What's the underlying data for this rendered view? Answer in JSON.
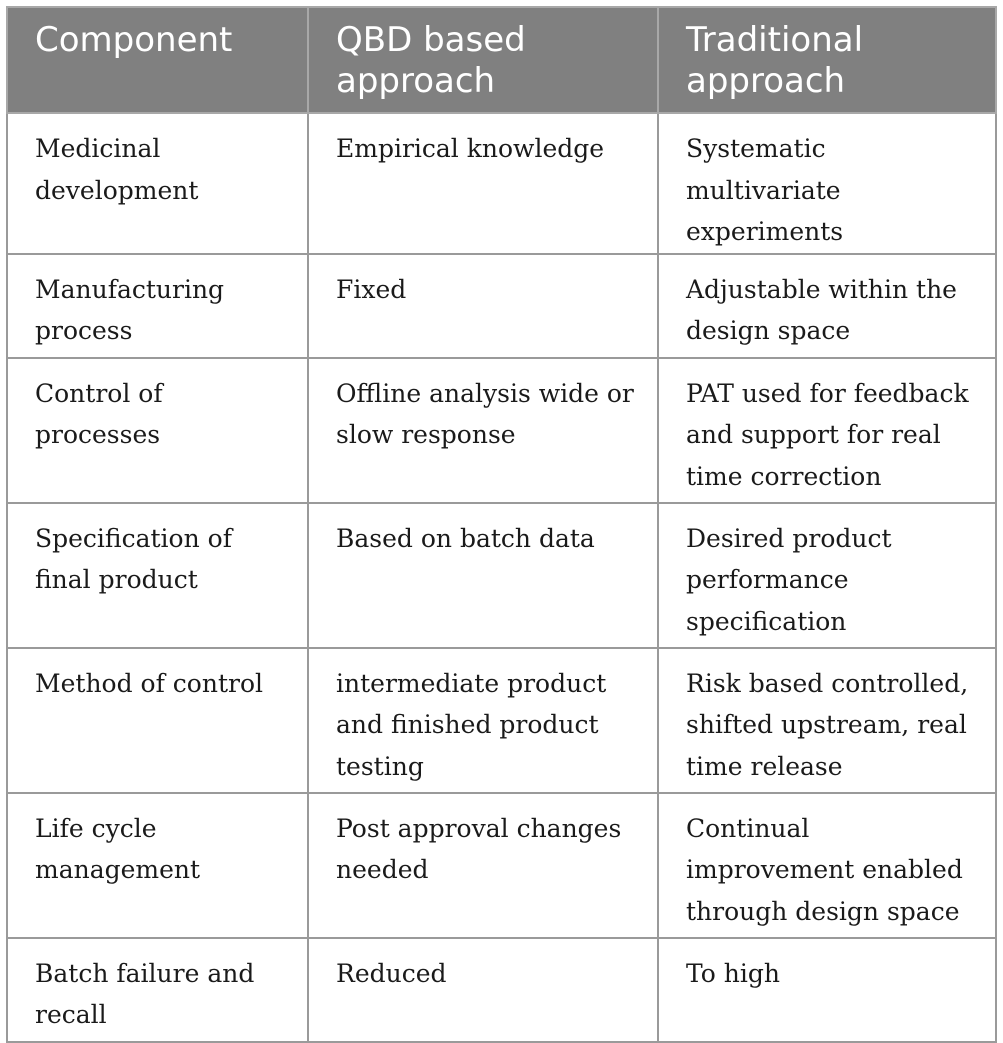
{
  "table": {
    "headers": [
      "Component",
      "QBD based approach",
      "Traditional approach"
    ],
    "rows": [
      [
        "Medicinal development",
        "Empirical knowledge",
        "Systematic multivariate experiments"
      ],
      [
        "Manufacturing process",
        "Fixed",
        "Adjustable within the design space"
      ],
      [
        "Control of processes",
        "Offline analysis wide or slow response",
        "PAT used for feedback and support for real time correction"
      ],
      [
        "Specification of final product",
        "Based on batch data",
        "Desired product performance specification"
      ],
      [
        "Method of control",
        "intermediate product and finished product testing",
        "Risk based controlled, shifted upstream, real time release"
      ],
      [
        "Life cycle management",
        "Post approval changes needed",
        "Continual improvement enabled through design space"
      ],
      [
        "Batch failure and recall",
        "Reduced",
        "To high"
      ]
    ]
  }
}
